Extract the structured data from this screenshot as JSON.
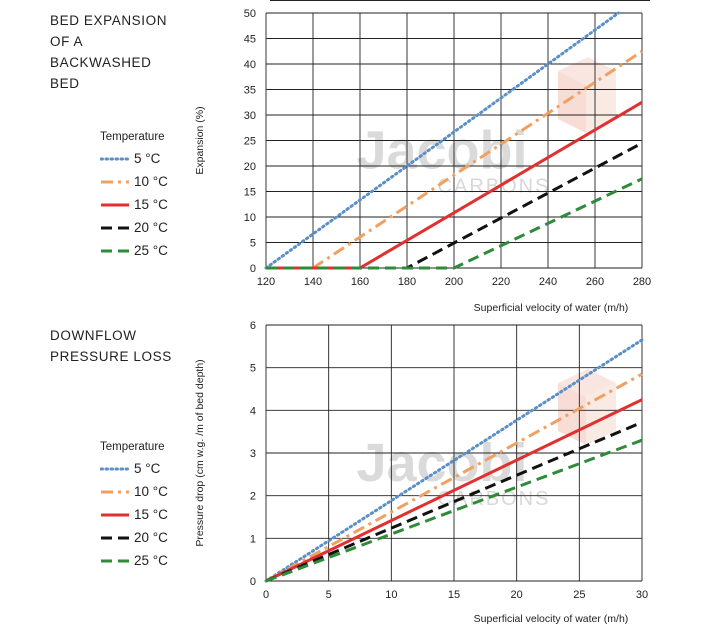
{
  "watermark": {
    "brand": "Jacobi",
    "sub": "CARBONS"
  },
  "sections": [
    {
      "title_lines": [
        "BED EXPANSION",
        "OF A",
        "BACKWASHED",
        "BED"
      ]
    },
    {
      "title_lines": [
        "DOWNFLOW",
        "PRESSURE LOSS"
      ]
    }
  ],
  "legend": {
    "title": "Temperature",
    "items": [
      {
        "label": "5 °C",
        "color": "#5b8fc7",
        "dash": "dotted"
      },
      {
        "label": "10 °C",
        "color": "#f0a060",
        "dash": "dashdot"
      },
      {
        "label": "15 °C",
        "color": "#e03030",
        "dash": "solid"
      },
      {
        "label": "20 °C",
        "color": "#111111",
        "dash": "dashed"
      },
      {
        "label": "25 °C",
        "color": "#2e8b3a",
        "dash": "dashed"
      }
    ]
  },
  "chart_data": [
    {
      "type": "line",
      "title": "BED EXPANSION OF A BACKWASHED BED",
      "xlabel": "Superficial velocity of water (m/h)",
      "ylabel": "Expansion (%)",
      "xlim": [
        120,
        280
      ],
      "ylim": [
        0,
        50
      ],
      "xticks": [
        120,
        140,
        160,
        180,
        200,
        220,
        240,
        260,
        280
      ],
      "yticks": [
        0,
        5,
        10,
        15,
        20,
        25,
        30,
        35,
        40,
        45,
        50
      ],
      "grid": true,
      "series": [
        {
          "name": "5 °C",
          "color": "#5b8fc7",
          "dash": "dotted",
          "points": [
            [
              120,
              0
            ],
            [
              270,
              50
            ]
          ]
        },
        {
          "name": "10 °C",
          "color": "#f0a060",
          "dash": "dashdot",
          "points": [
            [
              140,
              0
            ],
            [
              280,
              42.5
            ]
          ]
        },
        {
          "name": "15 °C",
          "color": "#e03030",
          "dash": "solid",
          "points": [
            [
              120,
              0
            ],
            [
              160,
              0
            ],
            [
              280,
              32.5
            ]
          ]
        },
        {
          "name": "20 °C",
          "color": "#111111",
          "dash": "dashed",
          "points": [
            [
              120,
              0
            ],
            [
              180,
              0
            ],
            [
              280,
              24.5
            ]
          ]
        },
        {
          "name": "25 °C",
          "color": "#2e8b3a",
          "dash": "dashed",
          "points": [
            [
              120,
              0
            ],
            [
              200,
              0
            ],
            [
              280,
              17.5
            ]
          ]
        }
      ]
    },
    {
      "type": "line",
      "title": "DOWNFLOW PRESSURE LOSS",
      "xlabel": "Superficial velocity of water (m/h)",
      "ylabel": "Pressure drop (cm w.g. /m of bed depth)",
      "xlim": [
        0,
        30
      ],
      "ylim": [
        0,
        6
      ],
      "xticks": [
        0,
        5,
        10,
        15,
        20,
        25,
        30
      ],
      "yticks": [
        0,
        1,
        2,
        3,
        4,
        5,
        6
      ],
      "grid": true,
      "series": [
        {
          "name": "5 °C",
          "color": "#5b8fc7",
          "dash": "dotted",
          "points": [
            [
              0,
              0
            ],
            [
              30,
              5.65
            ]
          ]
        },
        {
          "name": "10 °C",
          "color": "#f0a060",
          "dash": "dashdot",
          "points": [
            [
              0,
              0
            ],
            [
              30,
              4.85
            ]
          ]
        },
        {
          "name": "15 °C",
          "color": "#e03030",
          "dash": "solid",
          "points": [
            [
              0,
              0
            ],
            [
              30,
              4.25
            ]
          ]
        },
        {
          "name": "20 °C",
          "color": "#111111",
          "dash": "dashed",
          "points": [
            [
              0,
              0
            ],
            [
              30,
              3.72
            ]
          ]
        },
        {
          "name": "25 °C",
          "color": "#2e8b3a",
          "dash": "dashed",
          "points": [
            [
              0,
              0
            ],
            [
              30,
              3.3
            ]
          ]
        }
      ]
    }
  ]
}
